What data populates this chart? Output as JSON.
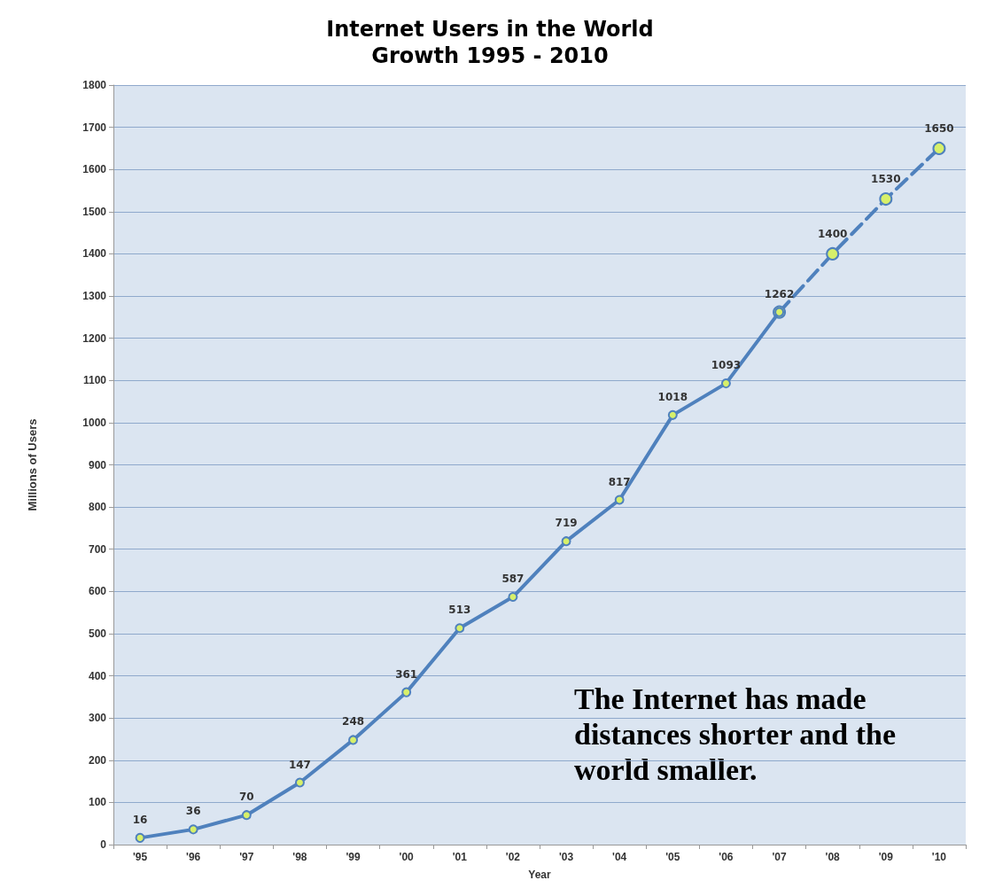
{
  "chart_data": {
    "type": "line",
    "title": "Internet Users in the World\nGrowth 1995 - 2010",
    "xlabel": "Year",
    "ylabel": "Millions of Users",
    "categories": [
      "'95",
      "'96",
      "'97",
      "'98",
      "'99",
      "'00",
      "'01",
      "'02",
      "'03",
      "'04",
      "'05",
      "'06",
      "'07",
      "'08",
      "'09",
      "'10"
    ],
    "series": [
      {
        "color": "#4f81bd",
        "line_style": "solid",
        "values": [
          16,
          36,
          70,
          147,
          248,
          361,
          513,
          587,
          719,
          817,
          1018,
          1093,
          1262,
          null,
          null,
          null
        ]
      },
      {
        "color": "#4f81bd",
        "line_style": "dashed",
        "values": [
          null,
          null,
          null,
          null,
          null,
          null,
          null,
          null,
          null,
          null,
          null,
          null,
          1262,
          1400,
          1530,
          1650
        ],
        "value_labels": [
          null,
          null,
          null,
          null,
          null,
          null,
          null,
          null,
          null,
          null,
          null,
          null,
          null,
          "1400",
          "1530",
          "1650"
        ]
      }
    ],
    "ylim": [
      0,
      1800
    ],
    "yticks": [
      0,
      100,
      200,
      300,
      400,
      500,
      600,
      700,
      800,
      900,
      1000,
      1100,
      1200,
      1300,
      1400,
      1500,
      1600,
      1700,
      1800
    ],
    "grid": "y",
    "marker": "circle",
    "data_labels": true,
    "annotations": [
      "The Internet has made distances shorter and the world smaller."
    ]
  }
}
